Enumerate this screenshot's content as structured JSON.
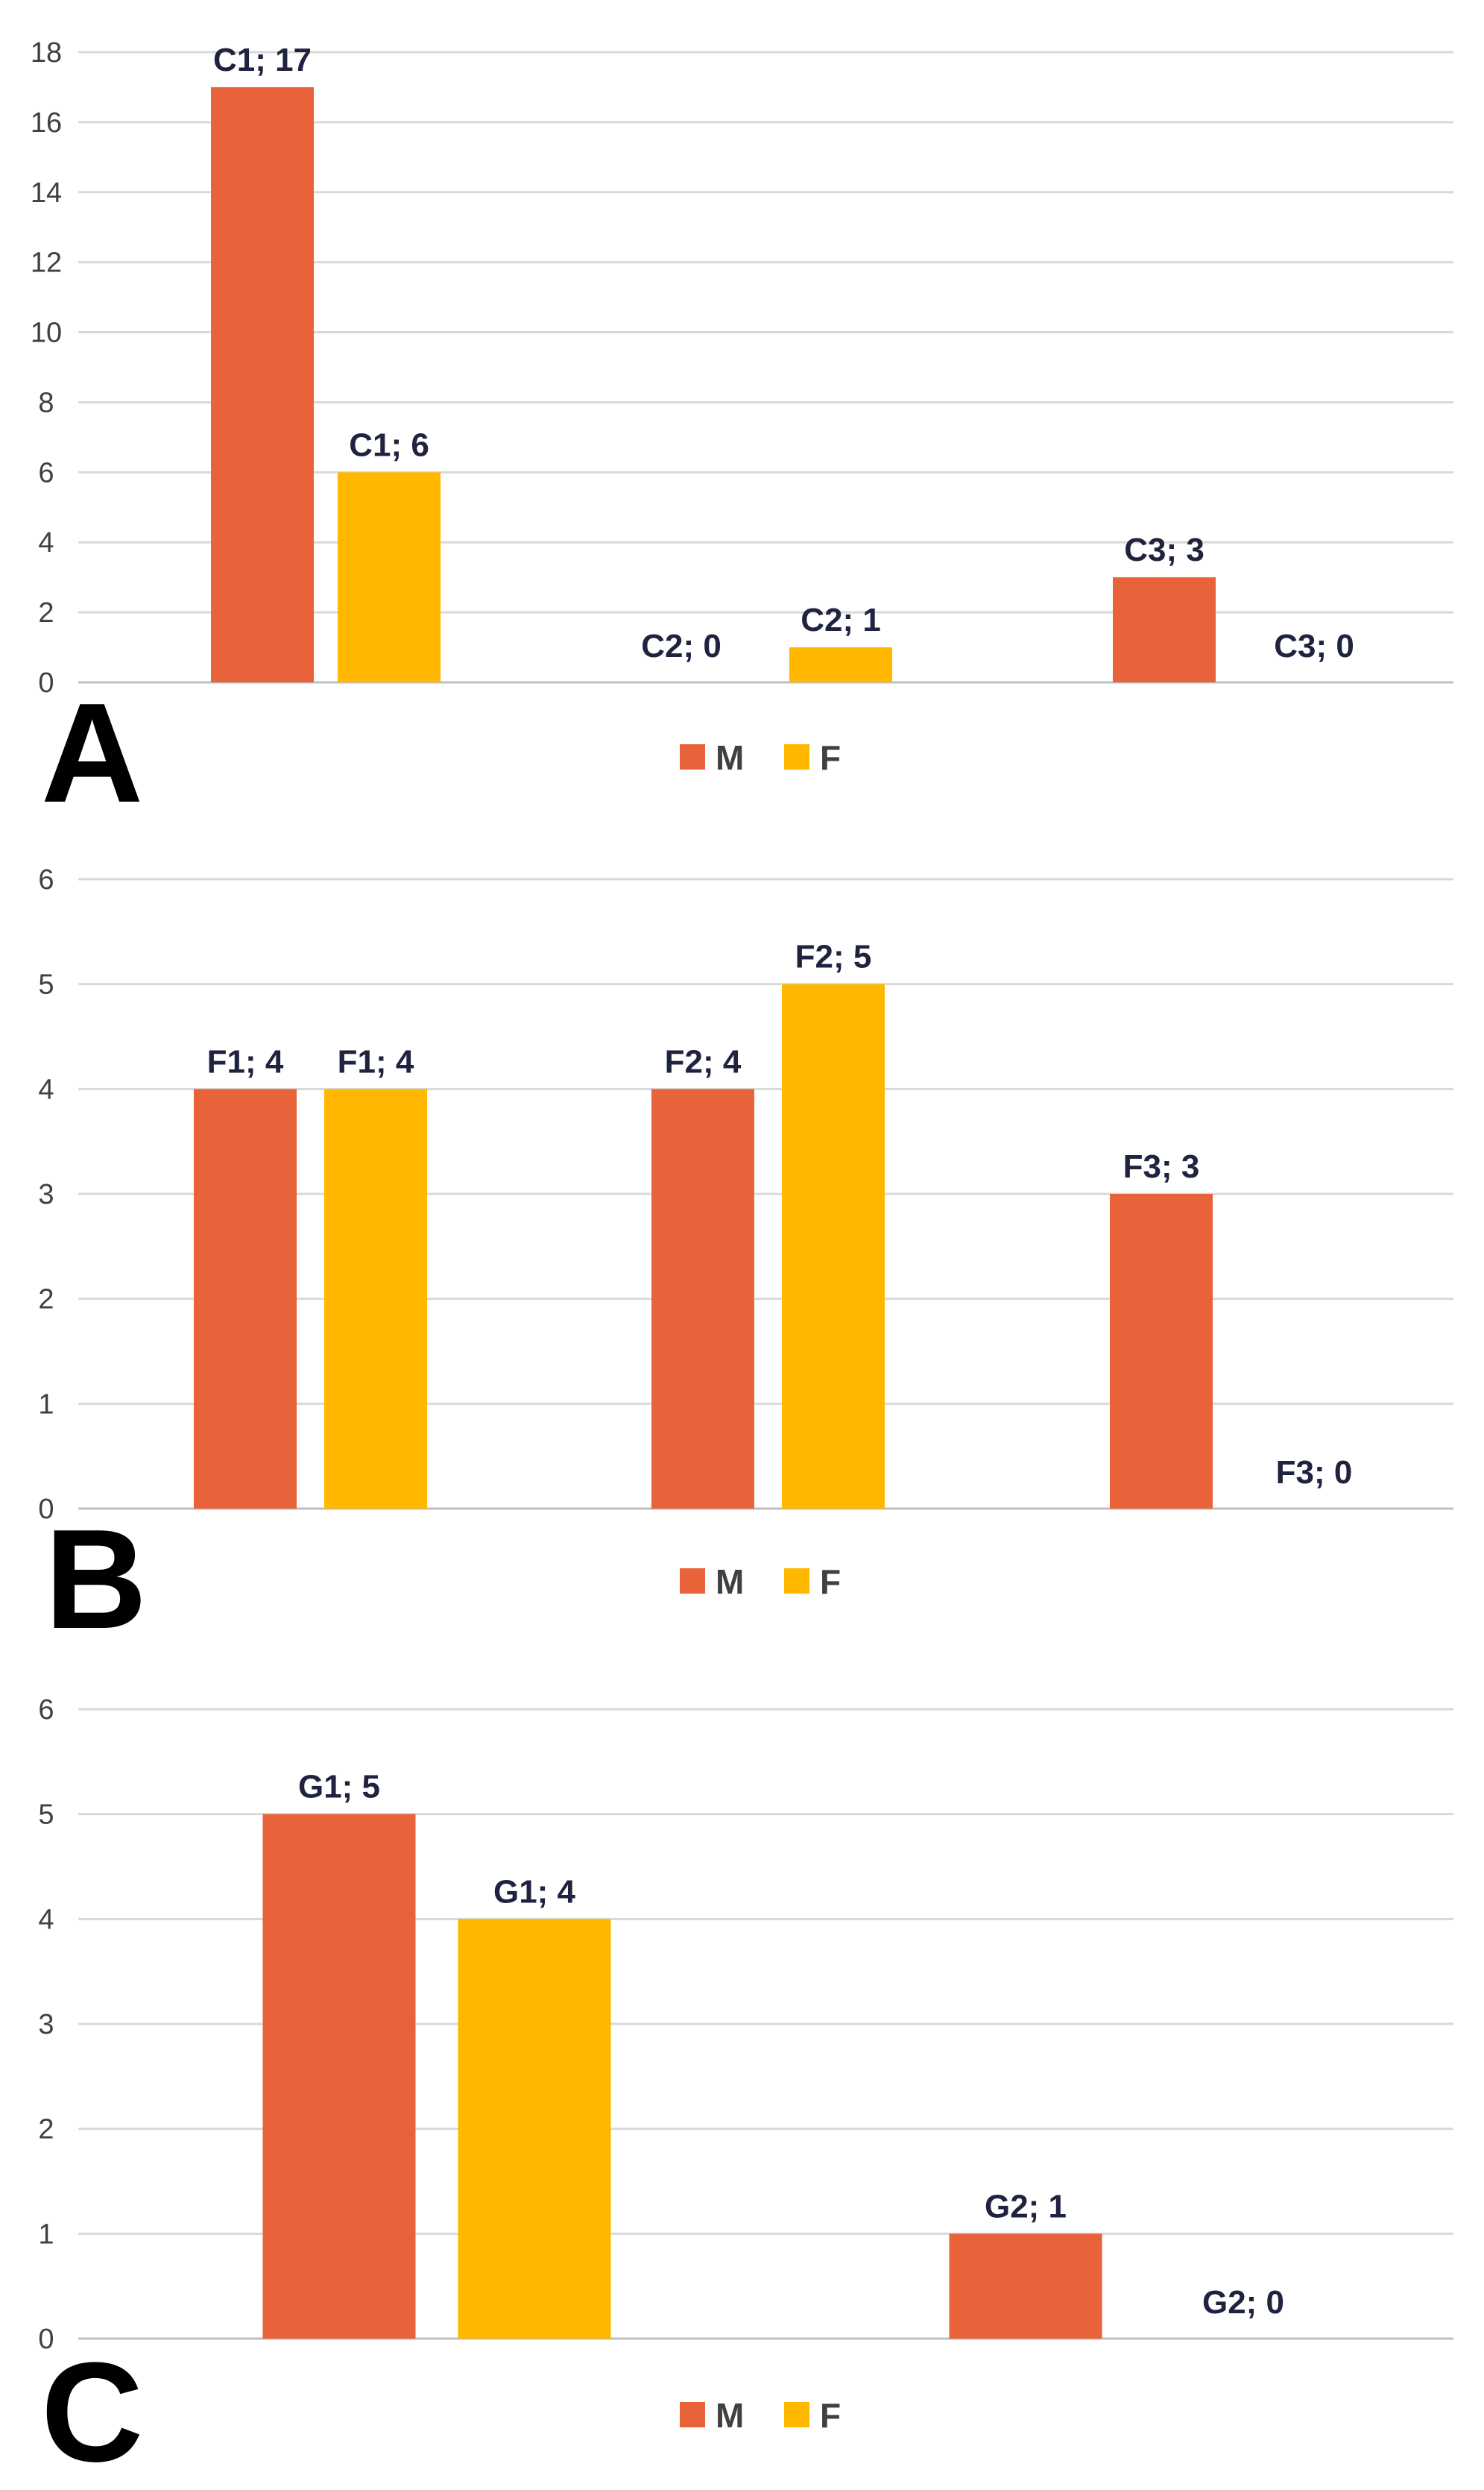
{
  "colors": {
    "M": "#e8623a",
    "F": "#ffb700"
  },
  "legend": [
    "M",
    "F"
  ],
  "chart_data": [
    {
      "type": "bar",
      "panel_letter": "A",
      "categories": [
        "C1",
        "C2",
        "C3"
      ],
      "series": [
        {
          "name": "M",
          "values": [
            17,
            0,
            3
          ],
          "labels": [
            "C1; 17",
            "C2; 0",
            "C3; 3"
          ]
        },
        {
          "name": "F",
          "values": [
            6,
            1,
            0
          ],
          "labels": [
            "C1; 6",
            "C2; 1",
            "C3; 0"
          ]
        }
      ],
      "ylim": [
        0,
        18
      ],
      "yticks": [
        "0",
        "2",
        "4",
        "6",
        "8",
        "10",
        "12",
        "14",
        "16",
        "18"
      ],
      "grid": true,
      "legend_position": "bottom"
    },
    {
      "type": "bar",
      "panel_letter": "B",
      "categories": [
        "F1",
        "F2",
        "F3"
      ],
      "series": [
        {
          "name": "M",
          "values": [
            4,
            4,
            3
          ],
          "labels": [
            "F1; 4",
            "F2; 4",
            "F3; 3"
          ]
        },
        {
          "name": "F",
          "values": [
            4,
            5,
            0
          ],
          "labels": [
            "F1; 4",
            "F2; 5",
            "F3; 0"
          ]
        }
      ],
      "ylim": [
        0,
        6
      ],
      "yticks": [
        "0",
        "1",
        "2",
        "3",
        "4",
        "5",
        "6"
      ],
      "grid": true,
      "legend_position": "bottom"
    },
    {
      "type": "bar",
      "panel_letter": "C",
      "categories": [
        "G1",
        "G2"
      ],
      "series": [
        {
          "name": "M",
          "values": [
            5,
            1
          ],
          "labels": [
            "G1; 5",
            "G2; 1"
          ]
        },
        {
          "name": "F",
          "values": [
            4,
            0
          ],
          "labels": [
            "G1; 4",
            "G2; 0"
          ]
        }
      ],
      "ylim": [
        0,
        6
      ],
      "yticks": [
        "0",
        "1",
        "2",
        "3",
        "4",
        "5",
        "6"
      ],
      "grid": true,
      "legend_position": "bottom"
    }
  ]
}
